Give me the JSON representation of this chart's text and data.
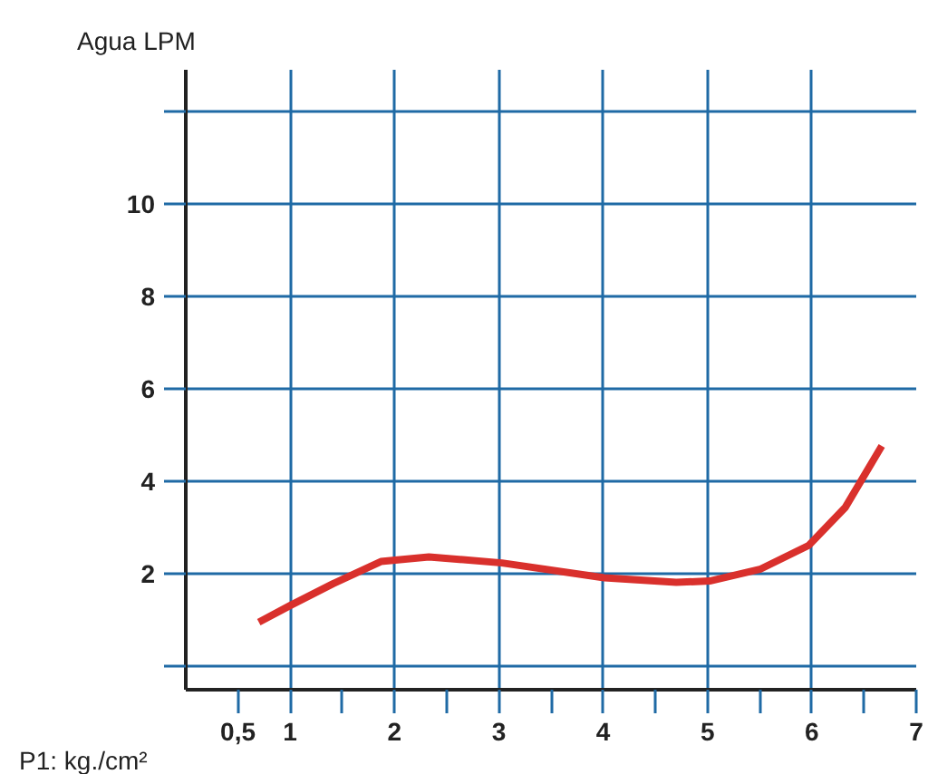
{
  "chart_data": {
    "type": "line",
    "xlabel": "P1: kg./cm²",
    "ylabel": "Agua LPM",
    "xlim": [
      0,
      7
    ],
    "ylim": [
      -0.5,
      12.9
    ],
    "xticks": [
      {
        "value": 0.5,
        "label": "0,5"
      },
      1,
      {
        "value": 1.5,
        "label": null
      },
      2,
      {
        "value": 2.5,
        "label": null
      },
      3,
      {
        "value": 3.5,
        "label": null
      },
      4,
      {
        "value": 4.5,
        "label": null
      },
      5,
      {
        "value": 5.5,
        "label": null
      },
      6,
      {
        "value": 6.5,
        "label": null
      },
      7
    ],
    "yticks": [
      {
        "value": 0,
        "label": null
      },
      2,
      4,
      6,
      8,
      10,
      {
        "value": 12,
        "label": null
      }
    ],
    "grid": true,
    "marker": "none",
    "line_style": "solid",
    "series": [
      {
        "color": "#d9302c",
        "x": [
          0.7,
          1.0,
          1.41,
          1.87,
          2.33,
          3.03,
          4.01,
          4.7,
          5.02,
          5.51,
          5.97,
          6.32,
          6.67
        ],
        "values": [
          0.96,
          1.32,
          1.79,
          2.27,
          2.37,
          2.24,
          1.92,
          1.82,
          1.85,
          2.11,
          2.62,
          3.44,
          4.77
        ]
      }
    ]
  }
}
